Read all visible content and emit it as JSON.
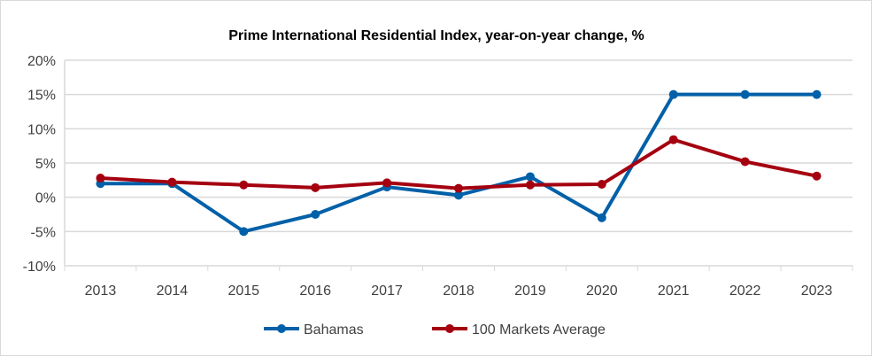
{
  "chart_data": {
    "type": "line",
    "title": "Prime International Residential Index, year-on-year change, %",
    "xlabel": "",
    "ylabel": "",
    "categories": [
      "2013",
      "2014",
      "2015",
      "2016",
      "2017",
      "2018",
      "2019",
      "2020",
      "2021",
      "2022",
      "2023"
    ],
    "ylim": [
      -10,
      20
    ],
    "yticks": [
      -10,
      -5,
      0,
      5,
      10,
      15,
      20
    ],
    "ytick_labels": [
      "-10%",
      "-5%",
      "0%",
      "5%",
      "10%",
      "15%",
      "20%"
    ],
    "grid": true,
    "legend_position": "bottom",
    "series": [
      {
        "name": "Bahamas",
        "color": "#0060a8",
        "values": [
          2,
          2,
          -5,
          -2.5,
          1.5,
          0.3,
          3,
          -3,
          15,
          15,
          15
        ]
      },
      {
        "name": "100 Markets Average",
        "color": "#a50010",
        "values": [
          2.8,
          2.2,
          1.8,
          1.4,
          2.1,
          1.3,
          1.8,
          1.9,
          8.4,
          5.2,
          3.1
        ]
      }
    ]
  }
}
